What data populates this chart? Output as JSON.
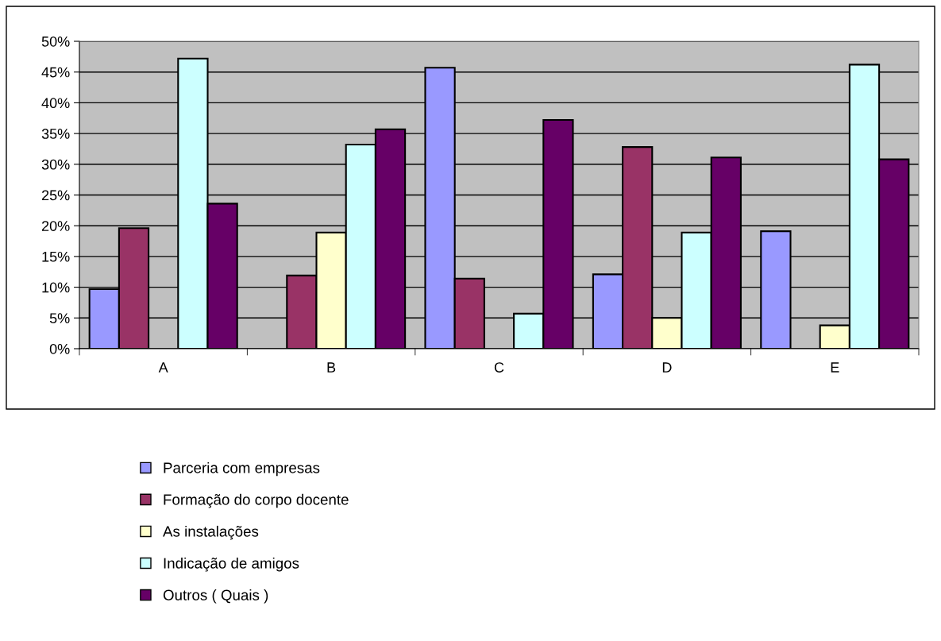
{
  "chart_data": {
    "type": "bar",
    "categories": [
      "A",
      "B",
      "C",
      "D",
      "E"
    ],
    "series": [
      {
        "name": "Parceria com empresas",
        "color": "#9999ff",
        "values": [
          9.7,
          null,
          45.7,
          12.1,
          19.1
        ]
      },
      {
        "name": "Formação do corpo docente",
        "color": "#993366",
        "values": [
          19.6,
          11.9,
          11.4,
          32.8,
          null
        ]
      },
      {
        "name": "As instalações",
        "color": "#ffffcc",
        "values": [
          null,
          18.9,
          null,
          5.0,
          3.8
        ]
      },
      {
        "name": "Indicação de amigos",
        "color": "#ccffff",
        "values": [
          47.2,
          33.2,
          5.7,
          18.9,
          46.2
        ]
      },
      {
        "name": "Outros ( Quais )",
        "color": "#660066",
        "values": [
          23.6,
          35.7,
          37.2,
          31.1,
          30.8
        ]
      }
    ],
    "ylim": [
      0,
      50
    ],
    "yticks": [
      {
        "value": 0,
        "label": "0%"
      },
      {
        "value": 5,
        "label": "5%"
      },
      {
        "value": 10,
        "label": "10%"
      },
      {
        "value": 15,
        "label": "15%"
      },
      {
        "value": 20,
        "label": "20%"
      },
      {
        "value": 25,
        "label": "25%"
      },
      {
        "value": 30,
        "label": "30%"
      },
      {
        "value": 35,
        "label": "35%"
      },
      {
        "value": 40,
        "label": "40%"
      },
      {
        "value": 45,
        "label": "45%"
      },
      {
        "value": 50,
        "label": "50%"
      }
    ],
    "grid": "y",
    "legend": "bottom"
  }
}
